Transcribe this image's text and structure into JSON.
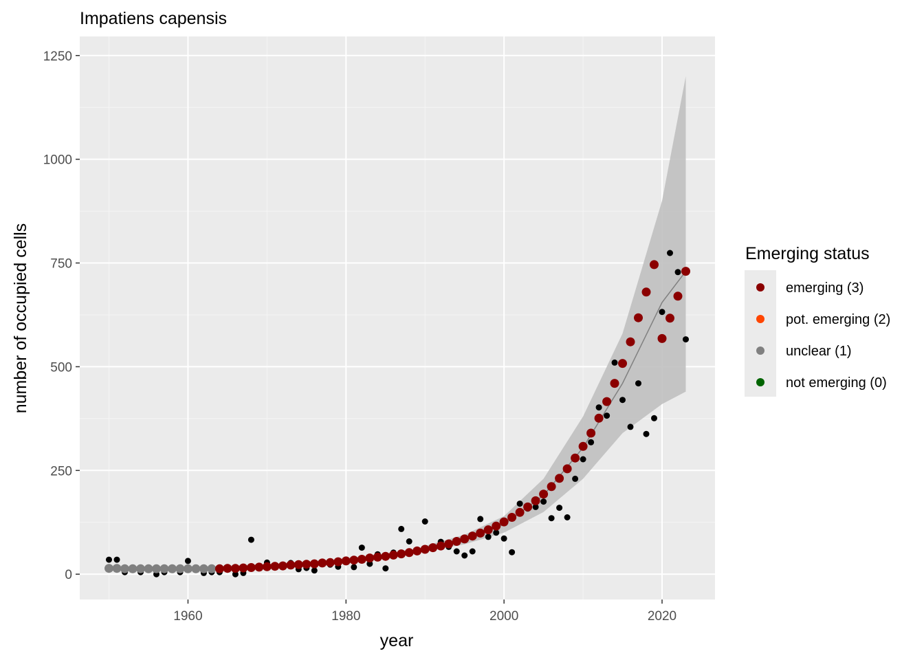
{
  "chart_data": {
    "type": "scatter",
    "title": "Impatiens capensis",
    "xlabel": "year",
    "ylabel": "number of occupied cells",
    "xlim": [
      1946.3,
      2026.7
    ],
    "ylim": [
      -61,
      1296
    ],
    "xticks": [
      1960,
      1980,
      2000,
      2020
    ],
    "yticks": [
      0,
      250,
      500,
      750,
      1000,
      1250
    ],
    "grid": true,
    "legend": {
      "title": "Emerging status",
      "position": "right",
      "entries": [
        {
          "label": "emerging (3)",
          "color": "#8b0000"
        },
        {
          "label": "pot. emerging (2)",
          "color": "#ff4500"
        },
        {
          "label": "unclear (1)",
          "color": "#808080"
        },
        {
          "label": "not emerging (0)",
          "color": "#006400"
        }
      ]
    },
    "series": [
      {
        "kind": "observed",
        "color": "#000000",
        "x": [
          1950,
          1951,
          1952,
          1953,
          1954,
          1955,
          1956,
          1957,
          1958,
          1959,
          1960,
          1961,
          1962,
          1963,
          1964,
          1965,
          1966,
          1967,
          1968,
          1969,
          1970,
          1971,
          1972,
          1973,
          1974,
          1975,
          1976,
          1977,
          1978,
          1979,
          1980,
          1981,
          1982,
          1983,
          1984,
          1985,
          1986,
          1987,
          1988,
          1989,
          1990,
          1991,
          1992,
          1993,
          1994,
          1995,
          1996,
          1997,
          1998,
          1999,
          2000,
          2001,
          2002,
          2003,
          2004,
          2005,
          2006,
          2007,
          2008,
          2009,
          2010,
          2011,
          2012,
          2013,
          2014,
          2015,
          2016,
          2017,
          2018,
          2019,
          2020,
          2021,
          2022,
          2023
        ],
        "y": [
          35,
          35,
          5,
          12,
          5,
          12,
          0,
          5,
          12,
          5,
          32,
          12,
          3,
          5,
          5,
          12,
          0,
          3,
          83,
          17,
          28,
          20,
          22,
          27,
          12,
          15,
          9,
          25,
          23,
          18,
          35,
          17,
          64,
          25,
          48,
          14,
          52,
          109,
          79,
          58,
          127,
          65,
          78,
          66,
          55,
          45,
          55,
          133,
          90,
          100,
          86,
          53,
          170,
          158,
          162,
          175,
          135,
          160,
          137,
          230,
          277,
          318,
          402,
          382,
          510,
          420,
          355,
          460,
          338,
          376,
          632,
          774,
          728,
          566
        ]
      },
      {
        "kind": "fitted",
        "color": "#8b0000",
        "x": [
          1950,
          1951,
          1952,
          1953,
          1954,
          1955,
          1956,
          1957,
          1958,
          1959,
          1960,
          1961,
          1962,
          1963,
          1964,
          1965,
          1966,
          1967,
          1968,
          1969,
          1970,
          1971,
          1972,
          1973,
          1974,
          1975,
          1976,
          1977,
          1978,
          1979,
          1980,
          1981,
          1982,
          1983,
          1984,
          1985,
          1986,
          1987,
          1988,
          1989,
          1990,
          1991,
          1992,
          1993,
          1994,
          1995,
          1996,
          1997,
          1998,
          1999,
          2000,
          2001,
          2002,
          2003,
          2004,
          2005,
          2006,
          2007,
          2008,
          2009,
          2010,
          2011,
          2012,
          2013,
          2014,
          2015,
          2016,
          2017,
          2018,
          2019,
          2020,
          2021,
          2022,
          2023
        ],
        "y": [
          14,
          14,
          13,
          13,
          13,
          13,
          13,
          13,
          13,
          13,
          13,
          13,
          13,
          13,
          13,
          14,
          14,
          15,
          16,
          17,
          18,
          19,
          20,
          22,
          23,
          24,
          25,
          27,
          28,
          30,
          32,
          34,
          36,
          39,
          41,
          43,
          46,
          49,
          52,
          56,
          60,
          64,
          68,
          73,
          79,
          85,
          92,
          99,
          107,
          116,
          126,
          137,
          149,
          162,
          177,
          193,
          211,
          231,
          254,
          280,
          308,
          340,
          376,
          416,
          460,
          508,
          560,
          618,
          680,
          746,
          568,
          617,
          670,
          730
        ],
        "status": [
          "unclear (1)",
          "unclear (1)",
          "unclear (1)",
          "unclear (1)",
          "unclear (1)",
          "unclear (1)",
          "unclear (1)",
          "unclear (1)",
          "unclear (1)",
          "unclear (1)",
          "unclear (1)",
          "unclear (1)",
          "unclear (1)",
          "unclear (1)",
          "emerging (3)",
          "emerging (3)",
          "emerging (3)",
          "emerging (3)",
          "emerging (3)",
          "emerging (3)",
          "emerging (3)",
          "emerging (3)",
          "emerging (3)",
          "emerging (3)",
          "emerging (3)",
          "emerging (3)",
          "emerging (3)",
          "emerging (3)",
          "emerging (3)",
          "emerging (3)",
          "emerging (3)",
          "emerging (3)",
          "emerging (3)",
          "emerging (3)",
          "emerging (3)",
          "emerging (3)",
          "emerging (3)",
          "emerging (3)",
          "emerging (3)",
          "emerging (3)",
          "emerging (3)",
          "emerging (3)",
          "emerging (3)",
          "emerging (3)",
          "emerging (3)",
          "emerging (3)",
          "emerging (3)",
          "emerging (3)",
          "emerging (3)",
          "emerging (3)",
          "emerging (3)",
          "emerging (3)",
          "emerging (3)",
          "emerging (3)",
          "emerging (3)",
          "emerging (3)",
          "emerging (3)",
          "emerging (3)",
          "emerging (3)",
          "emerging (3)",
          "emerging (3)",
          "emerging (3)",
          "emerging (3)",
          "emerging (3)",
          "emerging (3)",
          "emerging (3)",
          "emerging (3)",
          "emerging (3)",
          "emerging (3)",
          "emerging (3)",
          "emerging (3)",
          "emerging (3)",
          "emerging (3)",
          "emerging (3)"
        ]
      }
    ],
    "band": {
      "color": "#c0c0c0",
      "x": [
        1990,
        1995,
        2000,
        2005,
        2010,
        2015,
        2020,
        2023
      ],
      "lower": [
        55,
        72,
        100,
        150,
        230,
        340,
        410,
        440
      ],
      "upper": [
        68,
        95,
        140,
        230,
        380,
        580,
        900,
        1200
      ]
    }
  }
}
